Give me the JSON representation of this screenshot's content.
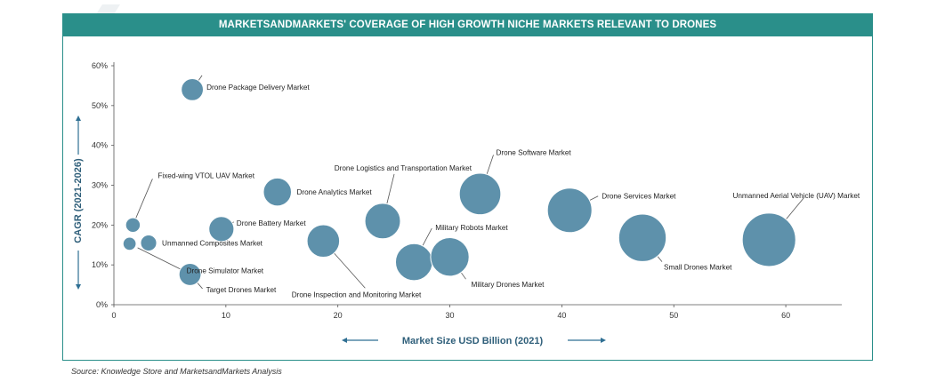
{
  "banner": {
    "title": "MARKETSANDMARKETS' COVERAGE OF HIGH GROWTH NICHE MARKETS RELEVANT TO DRONES"
  },
  "source": "Source: Knowledge Store and MarketsandMarkets Analysis",
  "colors": {
    "accent": "#2a8f8a",
    "bubble": "#5e91ab",
    "bubble_stroke": "#ffffff",
    "axis": "#555555",
    "arrow": "#2f6f93"
  },
  "chart_data": {
    "type": "scatter",
    "title": "MARKETSANDMARKETS' COVERAGE OF HIGH GROWTH NICHE MARKETS RELEVANT TO DRONES",
    "xlabel": "Market Size USD Billion (2021)",
    "ylabel": "CAGR (2021-2026)",
    "xlim": [
      0,
      65
    ],
    "ylim": [
      0,
      60
    ],
    "x_ticks": [
      "0",
      "10",
      "20",
      "30",
      "40",
      "50",
      "60"
    ],
    "y_ticks": [
      "0%",
      "10%",
      "20%",
      "30%",
      "40%",
      "50%",
      "60%"
    ],
    "grid": false,
    "legend": "none",
    "points": [
      {
        "label": "Drone Package Delivery Market",
        "x": 7.0,
        "y": 54.0,
        "size": 1.0
      },
      {
        "label": "Fixed-wing VTOL UAV Market",
        "x": 1.7,
        "y": 20.0,
        "size": 0.5
      },
      {
        "label": "Drone Analytics Market",
        "x": 14.6,
        "y": 28.3,
        "size": 1.4
      },
      {
        "label": "Drone Battery Market",
        "x": 9.6,
        "y": 19.0,
        "size": 1.2
      },
      {
        "label": "Unmanned Composites Market",
        "x": 3.1,
        "y": 15.5,
        "size": 0.6
      },
      {
        "label": "Drone Simulator Market",
        "x": 1.4,
        "y": 15.3,
        "size": 0.4
      },
      {
        "label": "Target Drones Market",
        "x": 6.8,
        "y": 7.6,
        "size": 1.0
      },
      {
        "label": "Drone Logistics and Transportation Market",
        "x": 24.0,
        "y": 21.0,
        "size": 1.9
      },
      {
        "label": "Drone Inspection and Monitoring Market",
        "x": 18.7,
        "y": 16.0,
        "size": 1.7
      },
      {
        "label": "Military Robots Market",
        "x": 26.8,
        "y": 10.7,
        "size": 2.0
      },
      {
        "label": "Drone Software Market",
        "x": 32.7,
        "y": 27.8,
        "size": 2.3
      },
      {
        "label": "Military Drones Market",
        "x": 30.0,
        "y": 12.0,
        "size": 2.1
      },
      {
        "label": "Drone Services Market",
        "x": 40.7,
        "y": 23.7,
        "size": 2.5
      },
      {
        "label": "Small Drones Market",
        "x": 47.2,
        "y": 16.8,
        "size": 2.7
      },
      {
        "label": "Unmanned Aerial Vehicle (UAV) Market",
        "x": 58.5,
        "y": 16.3,
        "size": 3.1
      }
    ]
  }
}
